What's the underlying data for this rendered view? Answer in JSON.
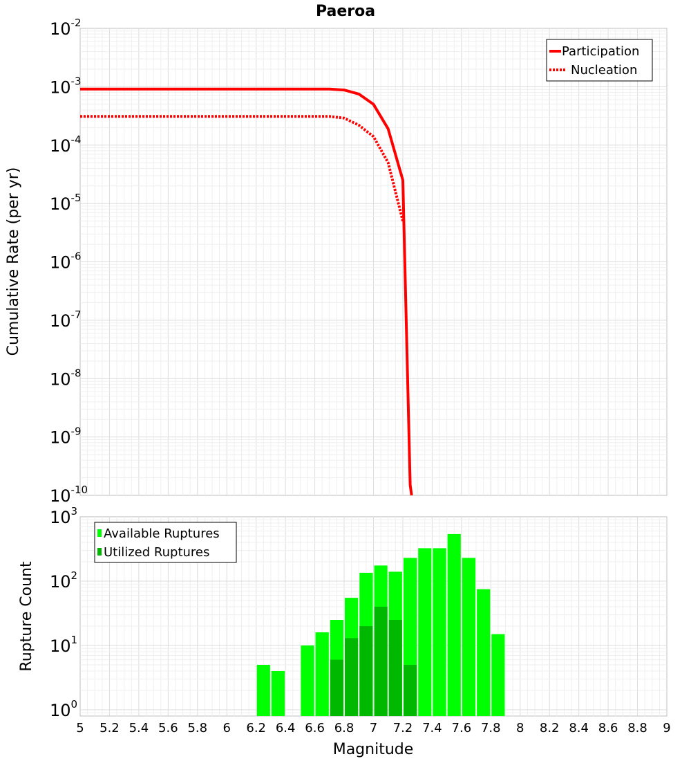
{
  "chart_data": [
    {
      "type": "line",
      "title": "Paeroa",
      "xlabel": "Magnitude",
      "ylabel": "Cumulative Rate (per yr)",
      "xlim": [
        5,
        9
      ],
      "ylim": [
        1e-10,
        0.01
      ],
      "yscale": "log",
      "grid": true,
      "legend_position": "top-right",
      "yticks": [
        {
          "base": "10",
          "exp": "-2",
          "value": 0.01
        },
        {
          "base": "10",
          "exp": "-3",
          "value": 0.001
        },
        {
          "base": "10",
          "exp": "-4",
          "value": 0.0001
        },
        {
          "base": "10",
          "exp": "-5",
          "value": 1e-05
        },
        {
          "base": "10",
          "exp": "-6",
          "value": 1e-06
        },
        {
          "base": "10",
          "exp": "-7",
          "value": 1e-07
        },
        {
          "base": "10",
          "exp": "-8",
          "value": 1e-08
        },
        {
          "base": "10",
          "exp": "-9",
          "value": 1e-09
        },
        {
          "base": "10",
          "exp": "-10",
          "value": 1e-10
        }
      ],
      "series": [
        {
          "name": "Participation",
          "style": "solid",
          "color": "#ff0000",
          "x": [
            5.0,
            5.5,
            6.0,
            6.5,
            6.7,
            6.8,
            6.9,
            7.0,
            7.1,
            7.2,
            7.25,
            7.26
          ],
          "y": [
            0.00091,
            0.00091,
            0.00091,
            0.00091,
            0.00091,
            0.00088,
            0.00075,
            0.0005,
            0.00019,
            2.5e-05,
            1.5e-10,
            1e-10
          ]
        },
        {
          "name": "Nucleation",
          "style": "dotted",
          "color": "#ff0000",
          "x": [
            5.0,
            5.5,
            6.0,
            6.5,
            6.7,
            6.8,
            6.9,
            7.0,
            7.1,
            7.2
          ],
          "y": [
            0.00031,
            0.00031,
            0.00031,
            0.00031,
            0.00031,
            0.00029,
            0.00022,
            0.00014,
            5e-05,
            5e-06
          ]
        }
      ]
    },
    {
      "type": "bar",
      "xlabel": "Magnitude",
      "ylabel": "Rupture Count",
      "xlim": [
        5,
        9
      ],
      "ylim": [
        0.8,
        1000
      ],
      "yscale": "log",
      "grid": true,
      "legend_position": "top-left",
      "bin_width": 0.1,
      "xticks": [
        "5",
        "5.2",
        "5.4",
        "5.6",
        "5.8",
        "6",
        "6.2",
        "6.4",
        "6.6",
        "6.8",
        "7",
        "7.2",
        "7.4",
        "7.6",
        "7.8",
        "8",
        "8.2",
        "8.4",
        "8.6",
        "8.8",
        "9"
      ],
      "yticks": [
        {
          "base": "10",
          "exp": "3",
          "value": 1000
        },
        {
          "base": "10",
          "exp": "2",
          "value": 100
        },
        {
          "base": "10",
          "exp": "1",
          "value": 10
        },
        {
          "base": "10",
          "exp": "0",
          "value": 1
        }
      ],
      "categories": [
        6.25,
        6.35,
        6.55,
        6.65,
        6.75,
        6.85,
        6.95,
        7.05,
        7.15,
        7.25,
        7.35,
        7.45,
        7.55,
        7.65,
        7.75,
        7.85
      ],
      "series": [
        {
          "name": "Available Ruptures",
          "color": "#00ff00",
          "values": [
            5,
            4,
            10,
            16,
            25,
            55,
            135,
            175,
            140,
            230,
            325,
            325,
            540,
            230,
            75,
            15
          ]
        },
        {
          "name": "Utilized Ruptures",
          "color": "#00b800",
          "values": [
            0,
            0,
            0,
            0,
            6,
            13,
            20,
            40,
            25,
            5,
            0,
            0,
            0,
            0,
            0,
            0
          ]
        }
      ]
    }
  ]
}
